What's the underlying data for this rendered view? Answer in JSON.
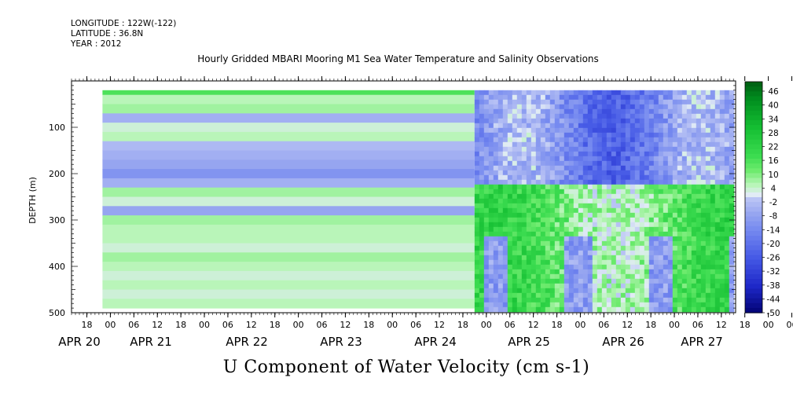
{
  "header": {
    "longitude": "LONGITUDE : 122W(-122)",
    "latitude": "LATITUDE : 36.8N",
    "year": "YEAR : 2012"
  },
  "chart_data": {
    "type": "heatmap",
    "title": "Hourly Gridded MBARI Mooring M1 Sea Water Temperature and Salinity Observations",
    "xlabel": "U Component of Water Velocity (cm s-1)",
    "ylabel": "DEPTH (m)",
    "y_reversed": true,
    "ylim": [
      500,
      0
    ],
    "y_ticks": [
      100,
      200,
      300,
      400,
      500
    ],
    "x_hour_ticks": [
      "18",
      "00",
      "06",
      "12",
      "18",
      "00",
      "06",
      "12",
      "18",
      "00",
      "06",
      "12",
      "18",
      "00",
      "06",
      "12",
      "18",
      "00",
      "06",
      "12",
      "18",
      "00",
      "06",
      "12",
      "18",
      "00",
      "06",
      "12",
      "18",
      "00",
      "06",
      "12"
    ],
    "x_date_labels": [
      "APR 20",
      "APR 21",
      "APR 22",
      "APR 23",
      "APR 24",
      "APR 25",
      "APR 26",
      "APR 27"
    ],
    "data_extent": {
      "time_start": "2012-04-21 00:00",
      "time_end": "2012-04-27 15:00",
      "depth_top": 20,
      "depth_bottom": 490
    },
    "missing_data_until": "2012-04-24 21:00",
    "colorbar": {
      "levels": [
        "46",
        "40",
        "34",
        "28",
        "22",
        "16",
        "10",
        "4",
        "-2",
        "-8",
        "-14",
        "-20",
        "-26",
        "-32",
        "-38",
        "-44",
        "-50"
      ],
      "units": "cm s-1"
    },
    "notes_values_cm_s": {
      "depth_bands_early_period": [
        {
          "depth": 20,
          "u": 14
        },
        {
          "depth": 40,
          "u": 4
        },
        {
          "depth": 60,
          "u": 6
        },
        {
          "depth": 80,
          "u": -6
        },
        {
          "depth": 100,
          "u": 2
        },
        {
          "depth": 120,
          "u": 4
        },
        {
          "depth": 140,
          "u": -4
        },
        {
          "depth": 160,
          "u": -6
        },
        {
          "depth": 180,
          "u": -8
        },
        {
          "depth": 200,
          "u": -12
        },
        {
          "depth": 220,
          "u": -6
        },
        {
          "depth": 240,
          "u": 6
        },
        {
          "depth": 260,
          "u": 2
        },
        {
          "depth": 280,
          "u": -8
        },
        {
          "depth": 300,
          "u": 6
        },
        {
          "depth": 320,
          "u": 4
        },
        {
          "depth": 340,
          "u": 4
        },
        {
          "depth": 360,
          "u": 2
        },
        {
          "depth": 380,
          "u": 6
        },
        {
          "depth": 400,
          "u": 4
        },
        {
          "depth": 420,
          "u": 2
        },
        {
          "depth": 440,
          "u": 4
        },
        {
          "depth": 460,
          "u": 2
        },
        {
          "depth": 480,
          "u": 4
        }
      ]
    }
  }
}
